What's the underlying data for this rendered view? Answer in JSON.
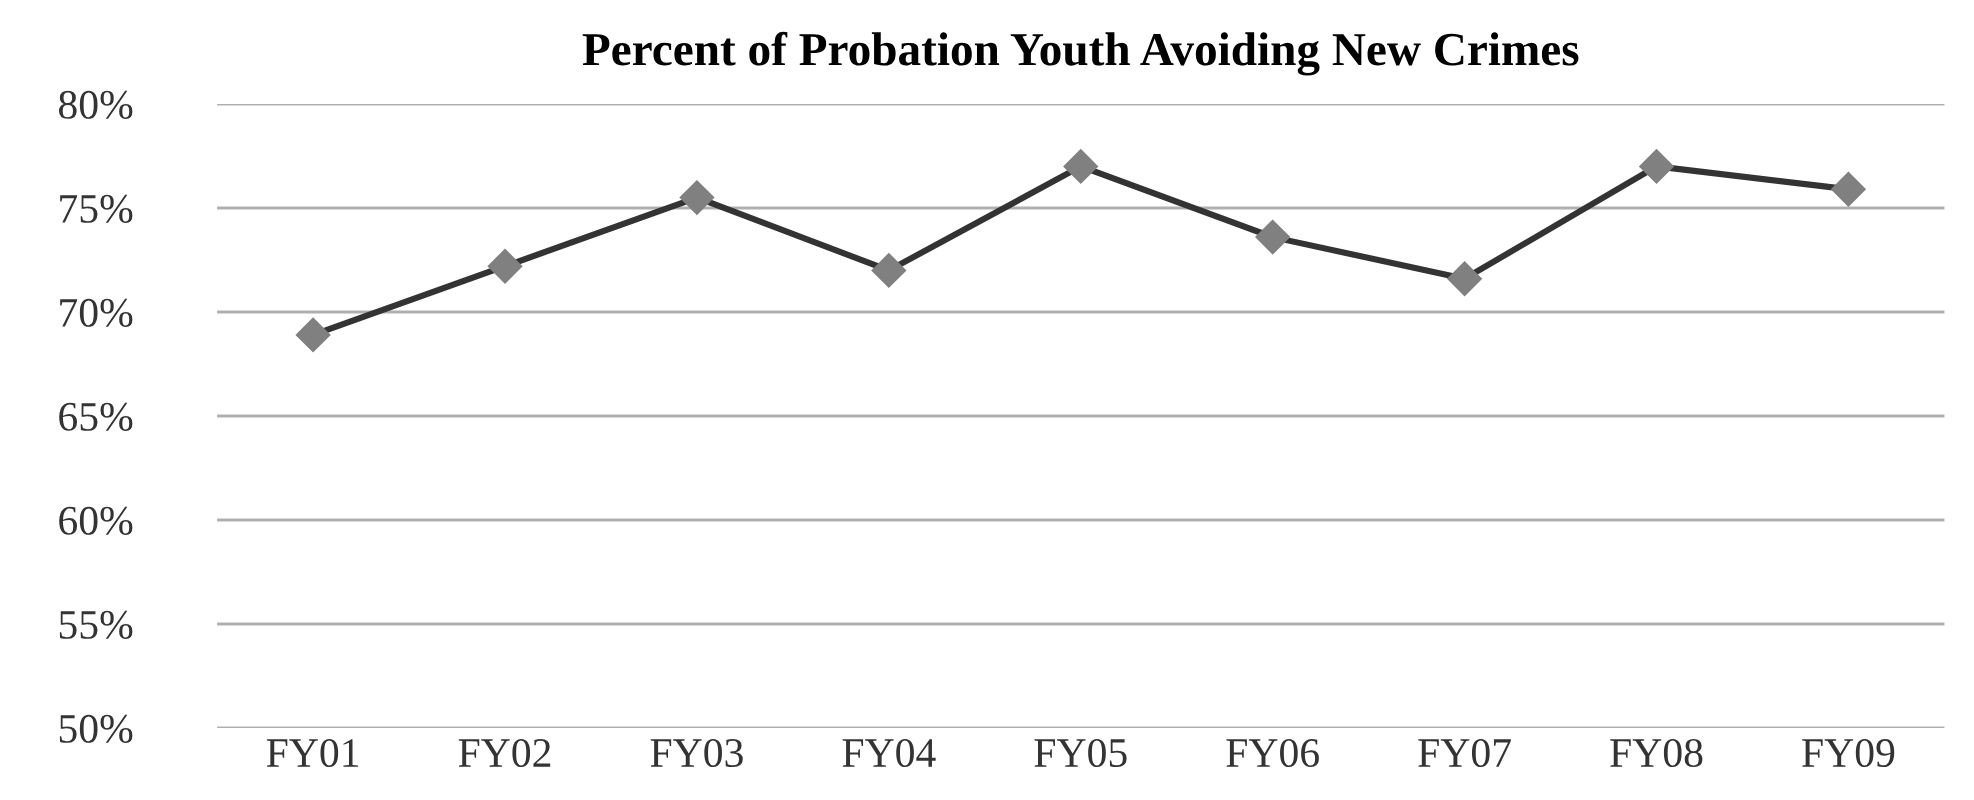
{
  "chart_data": {
    "type": "line",
    "title": "Percent of Probation Youth Avoiding New Crimes",
    "categories": [
      "FY01",
      "FY02",
      "FY03",
      "FY04",
      "FY05",
      "FY06",
      "FY07",
      "FY08",
      "FY09"
    ],
    "series": [
      {
        "color": "#333333",
        "values": [
          68.9,
          72.2,
          75.5,
          72.0,
          77.0,
          73.6,
          71.6,
          77.0,
          75.9
        ]
      }
    ],
    "ylim": [
      50,
      80
    ],
    "yticks": [
      {
        "value": 50,
        "label": "50%"
      },
      {
        "value": 55,
        "label": "55%"
      },
      {
        "value": 60,
        "label": "60%"
      },
      {
        "value": 65,
        "label": "65%"
      },
      {
        "value": 70,
        "label": "70%"
      },
      {
        "value": 75,
        "label": "75%"
      },
      {
        "value": 80,
        "label": "80%"
      }
    ],
    "grid": "y",
    "marker": "diamond",
    "line_style": "solid",
    "legend": false
  }
}
